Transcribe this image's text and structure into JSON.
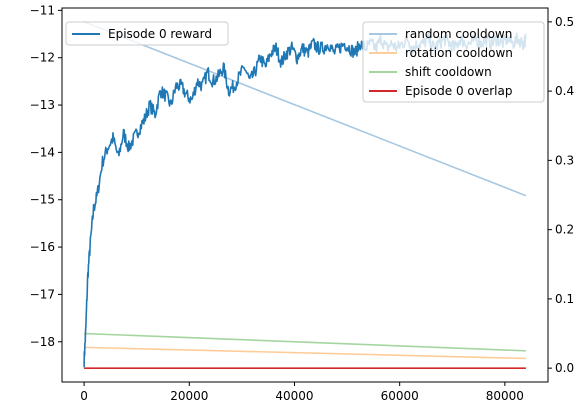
{
  "chart_data": {
    "type": "line",
    "title": "",
    "xlabel": "",
    "ylabel": "",
    "x_range": [
      0,
      84000
    ],
    "xlim": [
      -4200,
      88200
    ],
    "x_ticks": [
      0,
      20000,
      40000,
      60000,
      80000
    ],
    "x_tick_labels": [
      "0",
      "20000",
      "40000",
      "60000",
      "80000"
    ],
    "left_axis": {
      "ylim": [
        -18.85,
        -10.95
      ],
      "ticks": [
        -18,
        -17,
        -16,
        -15,
        -14,
        -13,
        -12,
        -11
      ],
      "tick_labels": [
        "−18",
        "−17",
        "−16",
        "−15",
        "−14",
        "−13",
        "−12",
        "−11"
      ]
    },
    "right_axis": {
      "ylim": [
        -0.02,
        0.52
      ],
      "ticks": [
        0.0,
        0.1,
        0.2,
        0.3,
        0.4,
        0.5
      ],
      "tick_labels": [
        "0.0",
        "0.1",
        "0.2",
        "0.3",
        "0.4",
        "0.5"
      ]
    },
    "series": [
      {
        "name": "Episode 0 reward",
        "axis": "left",
        "color": "#1f77b4",
        "noisy": true,
        "x": [
          0,
          300,
          700,
          1200,
          1800,
          2500,
          3500,
          4500,
          5500,
          6500,
          7500,
          8500,
          9500,
          10500,
          11500,
          12500,
          13500,
          14500,
          15500,
          16500,
          17500,
          18500,
          19500,
          20500,
          21500,
          22500,
          23500,
          24500,
          25500,
          26500,
          27500,
          28500,
          29500,
          30500,
          31500,
          32500,
          33500,
          34500,
          35500,
          36500,
          37500,
          38500,
          39500,
          40500,
          41500,
          42500,
          43500,
          44500,
          45500,
          46500,
          47500,
          48500,
          49500,
          50500,
          51500,
          52500,
          53500,
          54500,
          55500,
          56500,
          57500,
          58500,
          59500,
          60500,
          61500,
          62500,
          63500,
          64500,
          65500,
          66500,
          67500,
          68500,
          69500,
          70500,
          71500,
          72500,
          73500,
          74500,
          75500,
          76500,
          77500,
          78500,
          79500,
          80500,
          81500,
          82500,
          83500,
          84000
        ],
        "y": [
          -18.4,
          -17.8,
          -16.6,
          -15.9,
          -15.2,
          -14.9,
          -14.2,
          -13.9,
          -13.7,
          -14.1,
          -13.6,
          -13.9,
          -13.7,
          -13.5,
          -13.3,
          -13.0,
          -13.2,
          -12.7,
          -12.8,
          -13.0,
          -12.6,
          -12.6,
          -12.8,
          -12.9,
          -12.5,
          -12.6,
          -12.3,
          -12.5,
          -12.4,
          -12.2,
          -12.7,
          -12.6,
          -12.4,
          -12.2,
          -12.5,
          -12.3,
          -12.0,
          -12.2,
          -11.9,
          -11.8,
          -12.1,
          -11.9,
          -11.8,
          -12.0,
          -11.8,
          -11.9,
          -11.7,
          -11.8,
          -11.8,
          -11.7,
          -11.9,
          -11.8,
          -11.7,
          -11.8,
          -11.9,
          -11.7,
          -11.8,
          -11.7,
          -11.8,
          -11.6,
          -11.8,
          -11.7,
          -11.8,
          -11.7,
          -11.6,
          -11.8,
          -11.7,
          -11.7,
          -11.6,
          -11.8,
          -11.7,
          -11.6,
          -11.7,
          -11.8,
          -11.6,
          -11.7,
          -11.7,
          -11.6,
          -11.7,
          -11.6,
          -11.7,
          -11.6,
          -11.7,
          -11.6,
          -11.7,
          -11.6,
          -11.7,
          -11.6
        ]
      },
      {
        "name": "random cooldown",
        "axis": "right",
        "color": "#a6c8e2",
        "x": [
          0,
          84000
        ],
        "y": [
          0.5,
          0.249
        ]
      },
      {
        "name": "rotation cooldown",
        "axis": "right",
        "color": "#ffcc99",
        "x": [
          0,
          84000
        ],
        "y": [
          0.03,
          0.014
        ]
      },
      {
        "name": "shift cooldown",
        "axis": "right",
        "color": "#a5d6a0",
        "x": [
          0,
          84000
        ],
        "y": [
          0.05,
          0.025
        ]
      },
      {
        "name": "Episode 0 overlap",
        "axis": "right",
        "color": "#d62728",
        "x": [
          0,
          84000
        ],
        "y": [
          0.0,
          0.0
        ]
      }
    ],
    "legend_left": {
      "placement": "top-left",
      "entries": [
        "Episode 0 reward"
      ]
    },
    "legend_right": {
      "placement": "top-right",
      "entries": [
        "random cooldown",
        "rotation cooldown",
        "shift cooldown",
        "Episode 0 overlap"
      ]
    },
    "grid": false
  }
}
